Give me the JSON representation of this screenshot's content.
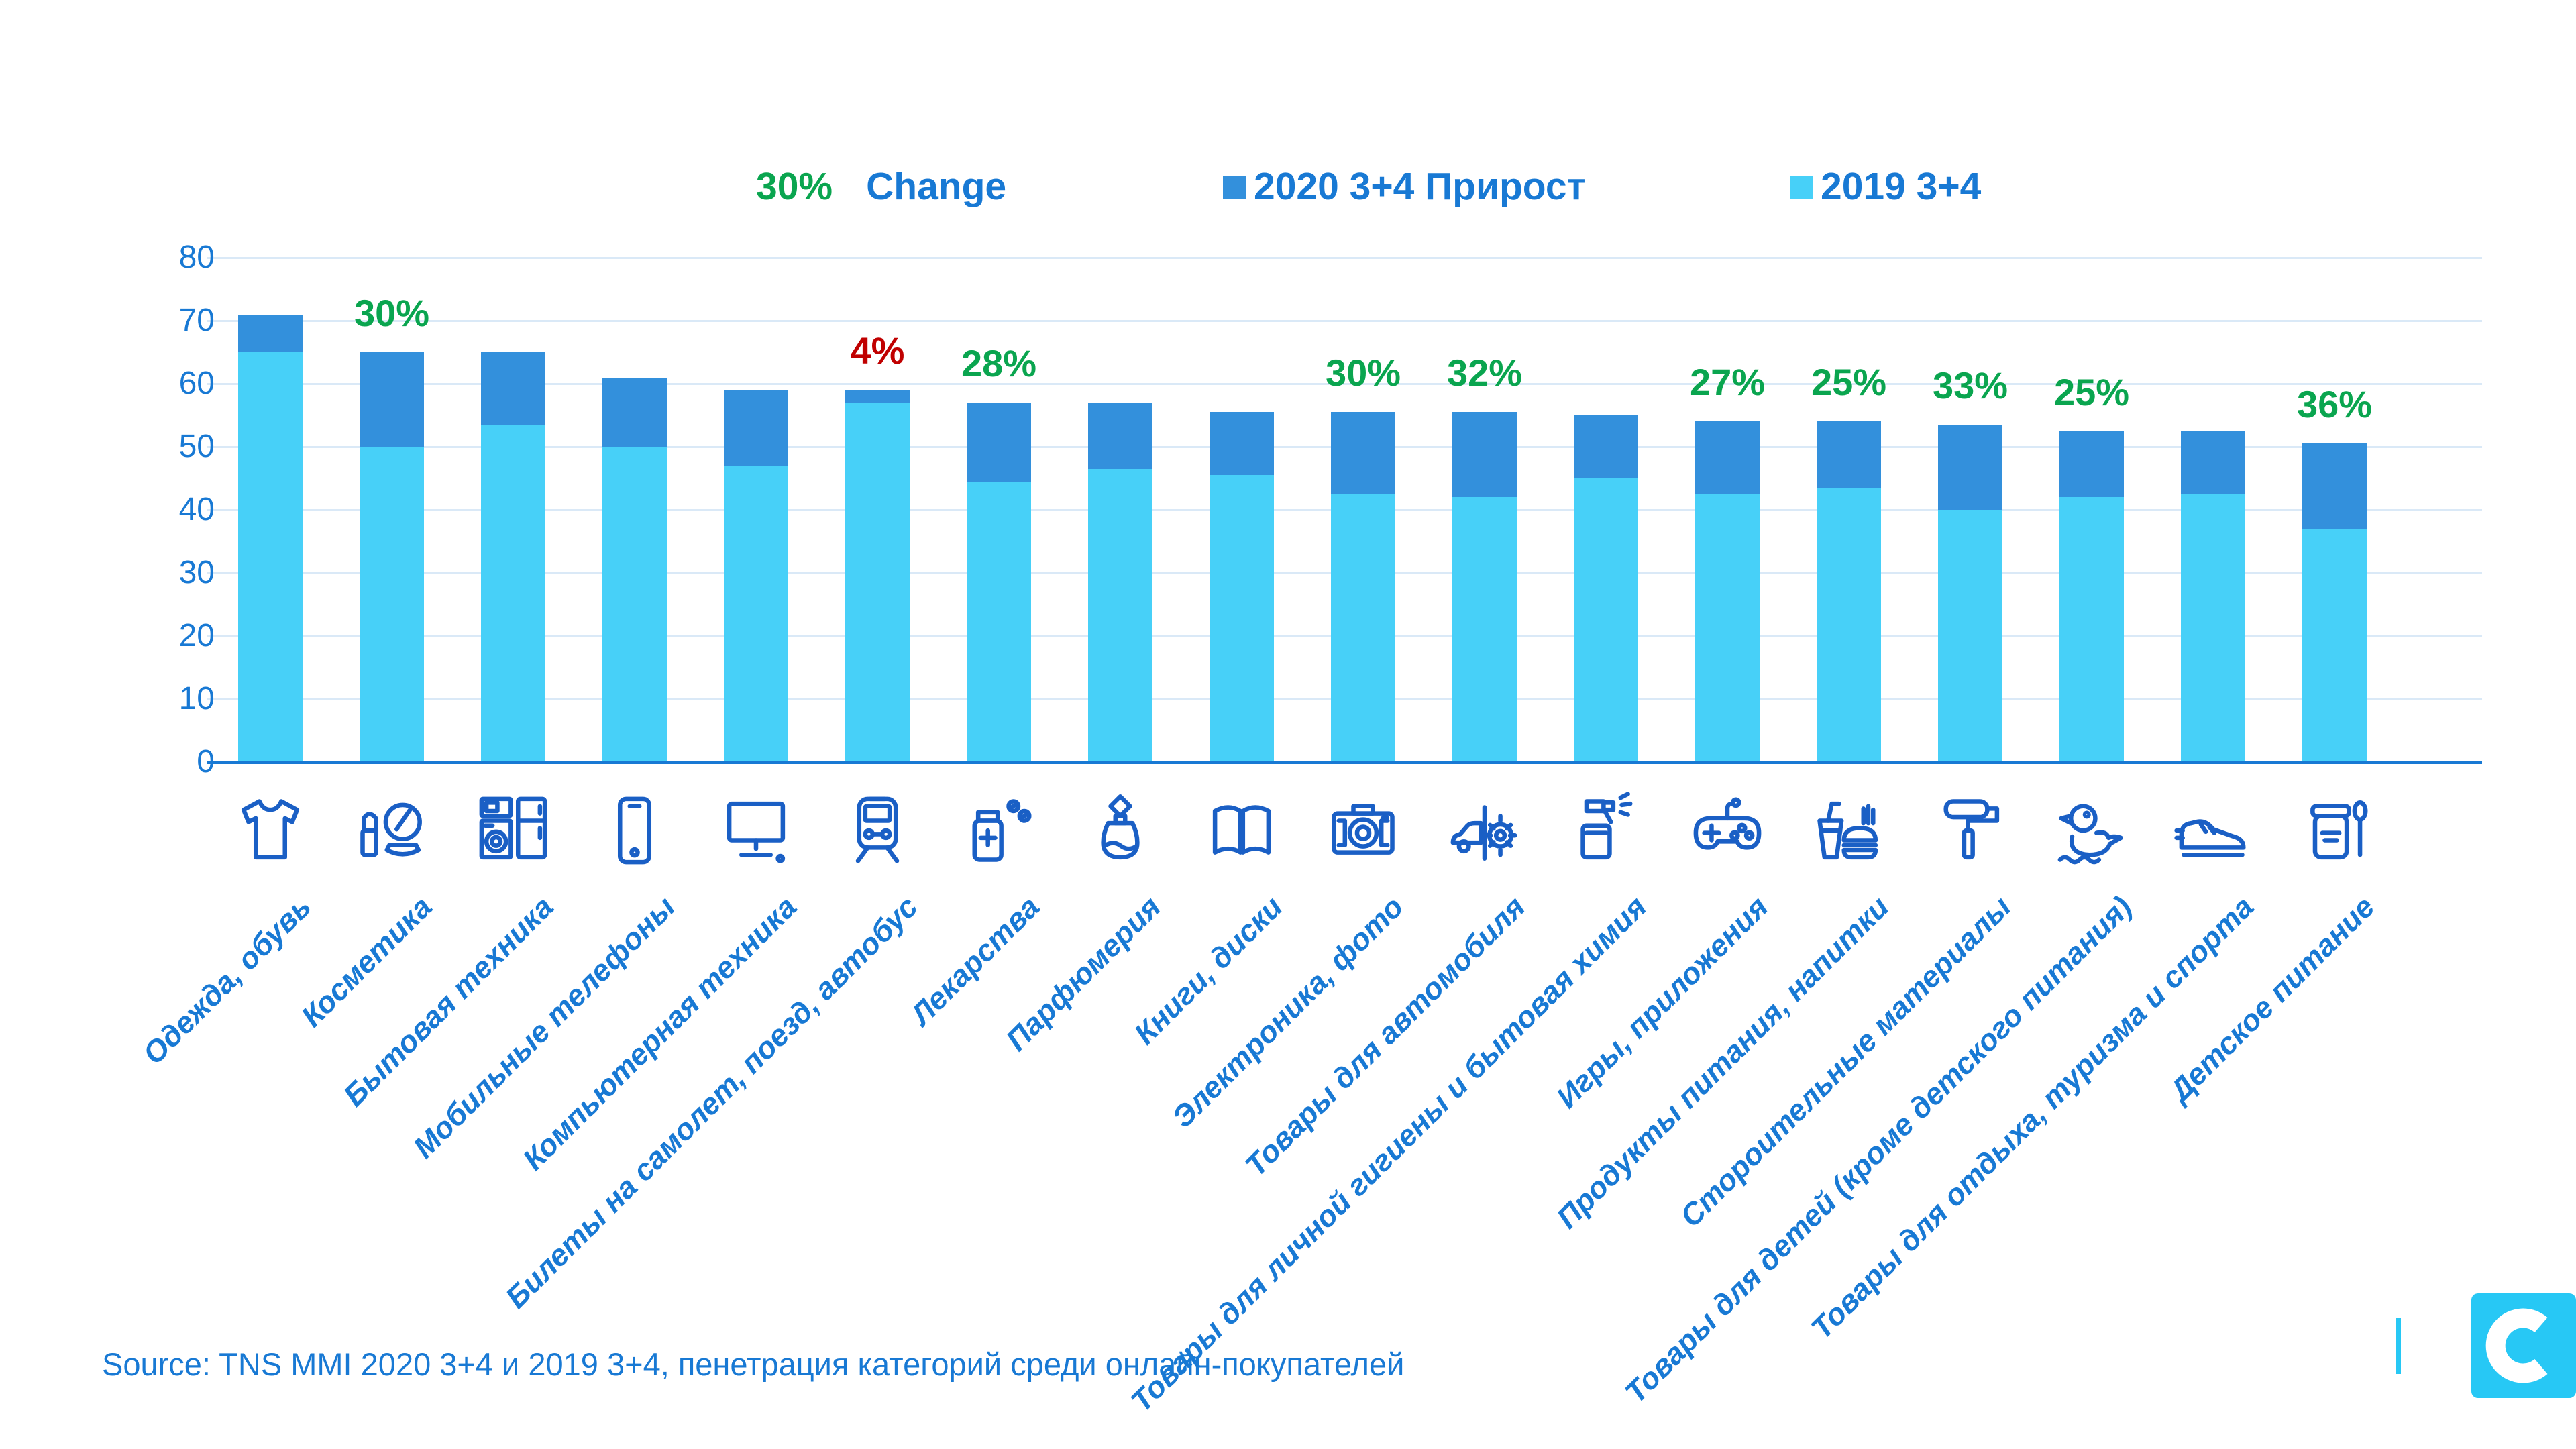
{
  "legend": {
    "change_value": "30%",
    "change_label": "Change",
    "series": [
      {
        "label": "2020 3+4 Прирост",
        "swatch": "dark"
      },
      {
        "label": "2019 3+4",
        "swatch": "light"
      }
    ]
  },
  "colors": {
    "bar_light": "#47D0F8",
    "bar_dark": "#3390DC",
    "text_blue": "#1879D4",
    "icon_blue": "#1A5FC5",
    "green": "#0AA54F",
    "red": "#C00000",
    "gridline": "#DAE9F7",
    "logo_cyan": "#27C8F5"
  },
  "y_axis": {
    "ticks": [
      80,
      70,
      60,
      50,
      40,
      30,
      20,
      10,
      0
    ],
    "min": 0,
    "max": 80
  },
  "chart_data": {
    "type": "bar",
    "stacked": true,
    "grid": true,
    "legend_position": "top",
    "ylim": [
      0,
      80
    ],
    "categories": [
      "Одежда, обувь",
      "Косметика",
      "Бытовая техника",
      "Мобильные телефоны",
      "Компьютерная техника",
      "Билеты на самолет, поезд, автобус",
      "Лекарства",
      "Парфюмерия",
      "Книги, диски",
      "Электроника, фото",
      "Товары для автомобиля",
      "Товары для личной гигиены и бытовая химия",
      "Игры, приложения",
      "Продукты питания, напитки",
      "Стороительные материалы",
      "Товары для детей (кроме детского питания)",
      "Товары для отдыха, туризма и спорта",
      "Детское питание"
    ],
    "icons": [
      "tshirt-icon",
      "cosmetics-icon",
      "appliances-icon",
      "mobile-phone-icon",
      "computer-icon",
      "train-icon",
      "medicine-icon",
      "perfume-icon",
      "books-icon",
      "camera-icon",
      "car-parts-icon",
      "spray-bottle-icon",
      "gamepad-icon",
      "fastfood-icon",
      "paint-roller-icon",
      "rubber-duck-icon",
      "sneaker-icon",
      "baby-food-icon"
    ],
    "series": [
      {
        "name": "2019 3+4",
        "values": [
          65,
          50,
          53.5,
          50,
          47,
          57,
          44.5,
          46.5,
          45.5,
          42.5,
          42,
          45,
          42.5,
          43.5,
          40,
          42,
          42.5,
          37
        ]
      },
      {
        "name": "2020 3+4 Прирост (total 2020)",
        "values": [
          71,
          65,
          65,
          61,
          59,
          59,
          57,
          57,
          55.5,
          55.5,
          55.5,
          55,
          54,
          54,
          53.5,
          52.5,
          52.5,
          50.5
        ]
      }
    ],
    "change_labels": [
      "",
      "30%",
      "",
      "",
      "",
      "4%",
      "28%",
      "",
      "",
      "30%",
      "32%",
      "",
      "27%",
      "25%",
      "33%",
      "25%",
      "",
      "36%"
    ],
    "change_label_colors": [
      "",
      "green",
      "",
      "",
      "",
      "red",
      "green",
      "",
      "",
      "green",
      "green",
      "",
      "green",
      "green",
      "green",
      "green",
      "",
      "green"
    ]
  },
  "source": {
    "text": "Source: TNS MMI 2020 3+4 и 2019 3+4, пенетрация категорий среди онлайн-покупателей"
  },
  "logo": {
    "letter": "C"
  }
}
